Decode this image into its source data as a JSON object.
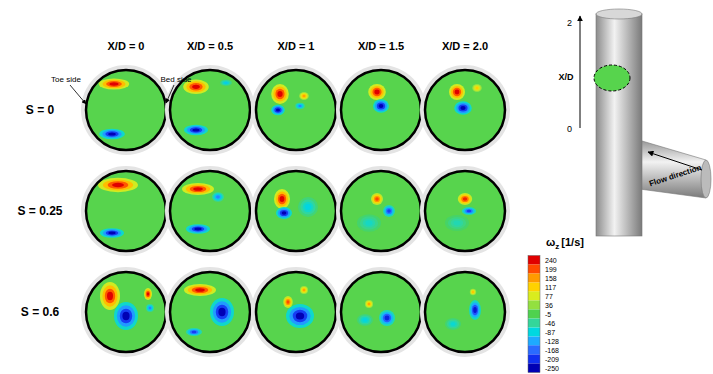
{
  "chart_data": {
    "type": "contour",
    "columns": [
      "X/D = 0",
      "X/D = 0.5",
      "X/D = 1",
      "X/D = 1.5",
      "X/D = 2.0"
    ],
    "rows": [
      "S = 0",
      "S = 0.25",
      "S = 0.6"
    ],
    "annotations": [
      "Toe side",
      "Bed side"
    ],
    "colorbar": {
      "symbol": "ω",
      "subscript": "z",
      "unit": "[1/s]",
      "range": [
        -250,
        240
      ],
      "ticks": [
        240,
        199,
        158,
        117,
        77,
        36,
        -5,
        -46,
        -87,
        -128,
        -168,
        -209,
        -250
      ]
    },
    "inset": {
      "axis_label": "X/D",
      "ticks": [
        0,
        2
      ],
      "flow_label": "Flow direction"
    },
    "panels": [
      [
        {
          "background": 0,
          "vortices": [
            {
              "x": -0.3,
              "y": 0.65,
              "rx": 0.38,
              "ry": 0.14,
              "value": 240
            },
            {
              "x": -0.35,
              "y": -0.6,
              "rx": 0.32,
              "ry": 0.13,
              "value": -250
            }
          ]
        },
        {
          "background": 0,
          "vortices": [
            {
              "x": -0.35,
              "y": 0.58,
              "rx": 0.32,
              "ry": 0.18,
              "value": 240
            },
            {
              "x": -0.35,
              "y": -0.5,
              "rx": 0.3,
              "ry": 0.13,
              "value": -250
            },
            {
              "x": 0.4,
              "y": 0.68,
              "rx": 0.15,
              "ry": 0.08,
              "value": -100
            }
          ]
        },
        {
          "background": 0,
          "vortices": [
            {
              "x": -0.4,
              "y": 0.4,
              "rx": 0.22,
              "ry": 0.25,
              "value": 240
            },
            {
              "x": -0.45,
              "y": 0.0,
              "rx": 0.17,
              "ry": 0.13,
              "value": -250
            },
            {
              "x": 0.2,
              "y": 0.35,
              "rx": 0.12,
              "ry": 0.1,
              "value": 150
            },
            {
              "x": 0.1,
              "y": 0.1,
              "rx": 0.12,
              "ry": 0.08,
              "value": -150
            }
          ]
        },
        {
          "background": 0,
          "vortices": [
            {
              "x": -0.1,
              "y": 0.45,
              "rx": 0.22,
              "ry": 0.2,
              "value": 240
            },
            {
              "x": 0.0,
              "y": 0.1,
              "rx": 0.2,
              "ry": 0.17,
              "value": -250
            }
          ]
        },
        {
          "background": 0,
          "vortices": [
            {
              "x": -0.2,
              "y": 0.45,
              "rx": 0.2,
              "ry": 0.2,
              "value": 240
            },
            {
              "x": -0.05,
              "y": 0.05,
              "rx": 0.22,
              "ry": 0.17,
              "value": -250
            },
            {
              "x": 0.3,
              "y": 0.55,
              "rx": 0.12,
              "ry": 0.1,
              "value": 120
            }
          ]
        }
      ],
      [
        {
          "background": 0,
          "vortices": [
            {
              "x": -0.2,
              "y": 0.65,
              "rx": 0.5,
              "ry": 0.18,
              "value": 240
            },
            {
              "x": -0.35,
              "y": -0.55,
              "rx": 0.3,
              "ry": 0.12,
              "value": -250
            }
          ]
        },
        {
          "background": 0,
          "vortices": [
            {
              "x": -0.3,
              "y": 0.55,
              "rx": 0.4,
              "ry": 0.15,
              "value": 240
            },
            {
              "x": -0.3,
              "y": -0.45,
              "rx": 0.3,
              "ry": 0.12,
              "value": -250
            },
            {
              "x": 0.2,
              "y": 0.35,
              "rx": 0.15,
              "ry": 0.12,
              "value": -150
            }
          ]
        },
        {
          "background": 0,
          "vortices": [
            {
              "x": 0.3,
              "y": 0.1,
              "rx": 0.25,
              "ry": 0.25,
              "value": -90
            },
            {
              "x": -0.35,
              "y": 0.3,
              "rx": 0.2,
              "ry": 0.25,
              "value": 240
            },
            {
              "x": -0.3,
              "y": -0.05,
              "rx": 0.2,
              "ry": 0.15,
              "value": -250
            }
          ]
        },
        {
          "background": 0,
          "vortices": [
            {
              "x": -0.3,
              "y": -0.3,
              "rx": 0.3,
              "ry": 0.22,
              "value": -70
            },
            {
              "x": -0.1,
              "y": 0.3,
              "rx": 0.15,
              "ry": 0.15,
              "value": 200
            },
            {
              "x": 0.2,
              "y": 0.0,
              "rx": 0.15,
              "ry": 0.15,
              "value": -200
            }
          ]
        },
        {
          "background": 0,
          "vortices": [
            {
              "x": -0.2,
              "y": -0.3,
              "rx": 0.3,
              "ry": 0.2,
              "value": -60
            },
            {
              "x": 0.0,
              "y": 0.3,
              "rx": 0.18,
              "ry": 0.15,
              "value": 220
            },
            {
              "x": 0.1,
              "y": 0.0,
              "rx": 0.18,
              "ry": 0.1,
              "value": -200
            }
          ]
        }
      ],
      [
        {
          "background": 0,
          "vortices": [
            {
              "x": -0.4,
              "y": 0.4,
              "rx": 0.25,
              "ry": 0.35,
              "value": 240
            },
            {
              "x": 0.55,
              "y": 0.45,
              "rx": 0.1,
              "ry": 0.15,
              "value": 240
            },
            {
              "x": 0.0,
              "y": -0.1,
              "rx": 0.3,
              "ry": 0.35,
              "value": -250
            },
            {
              "x": 0.6,
              "y": 0.1,
              "rx": 0.1,
              "ry": 0.1,
              "value": -150
            }
          ]
        },
        {
          "background": 0,
          "vortices": [
            {
              "x": -0.25,
              "y": 0.55,
              "rx": 0.4,
              "ry": 0.15,
              "value": 240
            },
            {
              "x": 0.3,
              "y": 0.0,
              "rx": 0.3,
              "ry": 0.35,
              "value": -250
            },
            {
              "x": -0.4,
              "y": -0.5,
              "rx": 0.2,
              "ry": 0.1,
              "value": -200
            }
          ]
        },
        {
          "background": 0,
          "vortices": [
            {
              "x": 0.1,
              "y": -0.1,
              "rx": 0.35,
              "ry": 0.3,
              "value": -250
            },
            {
              "x": -0.2,
              "y": 0.25,
              "rx": 0.12,
              "ry": 0.15,
              "value": 200
            },
            {
              "x": 0.2,
              "y": 0.55,
              "rx": 0.1,
              "ry": 0.1,
              "value": 150
            }
          ]
        },
        {
          "background": 0,
          "vortices": [
            {
              "x": -0.4,
              "y": -0.2,
              "rx": 0.2,
              "ry": 0.15,
              "value": -90
            },
            {
              "x": 0.15,
              "y": -0.15,
              "rx": 0.2,
              "ry": 0.2,
              "value": -220
            },
            {
              "x": -0.3,
              "y": 0.2,
              "rx": 0.1,
              "ry": 0.1,
              "value": 150
            }
          ]
        },
        {
          "background": 0,
          "vortices": [
            {
              "x": -0.3,
              "y": -0.3,
              "rx": 0.2,
              "ry": 0.15,
              "value": -80
            },
            {
              "x": 0.25,
              "y": 0.05,
              "rx": 0.15,
              "ry": 0.25,
              "value": -230
            },
            {
              "x": 0.2,
              "y": 0.5,
              "rx": 0.08,
              "ry": 0.08,
              "value": 130
            }
          ]
        }
      ]
    ]
  }
}
